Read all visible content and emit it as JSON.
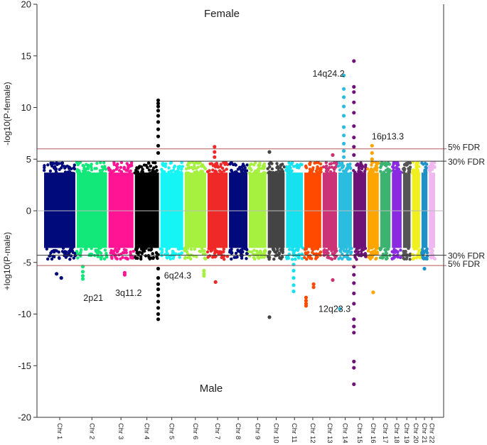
{
  "chart_data": {
    "type": "scatter",
    "subtype": "miami-plot",
    "top_label": "Female",
    "bottom_label": "Male",
    "ylabel_top": "-log10(P-female)",
    "ylabel_bottom": "+log10(P-male)",
    "ylim": [
      -20,
      20
    ],
    "yticks": [
      -20,
      -15,
      -10,
      -5,
      0,
      5,
      10,
      15,
      20
    ],
    "grid": false,
    "chromosomes": [
      {
        "label": "Chr 1",
        "color": "#000a7a",
        "size": 1.0
      },
      {
        "label": "Chr 2",
        "color": "#12e87a",
        "size": 0.97
      },
      {
        "label": "Chr 3",
        "color": "#ff1493",
        "size": 0.8
      },
      {
        "label": "Chr 4",
        "color": "#000000",
        "size": 0.77
      },
      {
        "label": "Chr 5",
        "color": "#15f5f5",
        "size": 0.73
      },
      {
        "label": "Chr 6",
        "color": "#a6f040",
        "size": 0.69
      },
      {
        "label": "Chr 7",
        "color": "#ef2828",
        "size": 0.64
      },
      {
        "label": "Chr 8",
        "color": "#000a7a",
        "size": 0.59
      },
      {
        "label": "Chr 9",
        "color": "#a6f040",
        "size": 0.56
      },
      {
        "label": "Chr 10",
        "color": "#444444",
        "size": 0.54
      },
      {
        "label": "Chr 11",
        "color": "#15e2ee",
        "size": 0.54
      },
      {
        "label": "Chr 12",
        "color": "#ff4a00",
        "size": 0.54
      },
      {
        "label": "Chr 13",
        "color": "#cc3377",
        "size": 0.46
      },
      {
        "label": "Chr 14",
        "color": "#2bbde0",
        "size": 0.43
      },
      {
        "label": "Chr 15",
        "color": "#6e1278",
        "size": 0.41
      },
      {
        "label": "Chr 16",
        "color": "#ffa500",
        "size": 0.36
      },
      {
        "label": "Chr 17",
        "color": "#3cb371",
        "size": 0.33
      },
      {
        "label": "Chr 18",
        "color": "#8a2be2",
        "size": 0.31
      },
      {
        "label": "Chr 19",
        "color": "#555555",
        "size": 0.24
      },
      {
        "label": "Chr 20",
        "color": "#f0f020",
        "size": 0.26
      },
      {
        "label": "Chr 21",
        "color": "#1e90c8",
        "size": 0.19
      },
      {
        "label": "Chr 22",
        "color": "#f0b8f0",
        "size": 0.2
      }
    ],
    "thresholds": [
      {
        "label": "5%  FDR",
        "y": 6.0,
        "color": "#b85a5a"
      },
      {
        "label": "30% FDR",
        "y": 4.8,
        "color": "#333333"
      },
      {
        "label": "30% FDR",
        "y": -4.3,
        "color": "#333333"
      },
      {
        "label": "5%  FDR",
        "y": -5.3,
        "color": "#b85a5a"
      }
    ],
    "annotations": [
      {
        "label": "14q24.2",
        "chr": "Chr 14",
        "y": 13.0
      },
      {
        "label": "16p13.3",
        "chr": "Chr 16",
        "y": 6.5
      },
      {
        "label": "2p21",
        "chr": "Chr 2",
        "y": -7.5
      },
      {
        "label": "3q11.2",
        "chr": "Chr 3",
        "y": -7.0
      },
      {
        "label": "6q24.3",
        "chr": "Chr 6",
        "y": -6.0
      },
      {
        "label": "12q23.3",
        "chr": "Chr 12",
        "y": -8.0
      }
    ],
    "peaks": [
      {
        "chr": "Chr 4",
        "pos": 0.97,
        "y": [
          10.7,
          10.4,
          10.1,
          9.7,
          9.2,
          8.6,
          7.9,
          7.2,
          6.3,
          5.6
        ]
      },
      {
        "chr": "Chr 4",
        "pos": 0.97,
        "y": [
          -5.6,
          -6.5,
          -7.1,
          -7.6,
          -8.2,
          -8.8,
          -9.4,
          -10.0,
          -10.5
        ]
      },
      {
        "chr": "Chr 14",
        "pos": 0.4,
        "y": [
          13.1,
          11.8,
          11.0,
          10.1,
          9.2,
          8.1,
          7.3,
          6.5,
          5.8,
          5.2
        ]
      },
      {
        "chr": "Chr 15",
        "pos": 0.05,
        "y": [
          14.5,
          12.0,
          11.5,
          10.5,
          9.5,
          8.2,
          7.1,
          6.2,
          5.4
        ]
      },
      {
        "chr": "Chr 15",
        "pos": 0.05,
        "y": [
          -5.4,
          -6.2,
          -7.0,
          -8.0,
          -9.0,
          -10.5,
          -11.2,
          -11.8,
          -14.6,
          -15.2,
          -16.8
        ]
      },
      {
        "chr": "Chr 11",
        "pos": 0.45,
        "y": [
          -5.2,
          -5.8,
          -6.5,
          -7.2,
          -7.8
        ]
      },
      {
        "chr": "Chr 12",
        "pos": 0.1,
        "y": [
          -8.4,
          -8.7,
          -9.0,
          -9.2
        ]
      },
      {
        "chr": "Chr 12",
        "pos": 0.55,
        "y": [
          -7.1,
          -7.4
        ]
      },
      {
        "chr": "Chr 2",
        "pos": 0.2,
        "y": [
          -5.4,
          -5.9,
          -6.3,
          -6.6
        ]
      },
      {
        "chr": "Chr 3",
        "pos": 0.65,
        "y": [
          -6.0,
          -6.2
        ]
      },
      {
        "chr": "Chr 6",
        "pos": 0.9,
        "y": [
          -5.8,
          -6.1,
          -6.3
        ]
      },
      {
        "chr": "Chr 7",
        "pos": 0.35,
        "y": [
          6.2,
          5.7,
          5.2
        ]
      },
      {
        "chr": "Chr 7",
        "pos": 0.4,
        "y": [
          -6.9
        ]
      },
      {
        "chr": "Chr 16",
        "pos": 0.4,
        "y": [
          6.3,
          5.6,
          5.0
        ]
      },
      {
        "chr": "Chr 16",
        "pos": 0.5,
        "y": [
          -7.9
        ]
      },
      {
        "chr": "Chr 1",
        "pos": 0.4,
        "y": [
          -6.1
        ]
      },
      {
        "chr": "Chr 1",
        "pos": 0.55,
        "y": [
          -6.5
        ]
      },
      {
        "chr": "Chr 10",
        "pos": 0.1,
        "y": [
          -10.3
        ]
      },
      {
        "chr": "Chr 10",
        "pos": 0.1,
        "y": [
          5.7
        ]
      },
      {
        "chr": "Chr 14",
        "pos": 0.1,
        "y": [
          -9.5
        ]
      },
      {
        "chr": "Chr 13",
        "pos": 0.7,
        "y": [
          5.4,
          -6.7
        ]
      },
      {
        "chr": "Chr 21",
        "pos": 0.5,
        "y": [
          -5.6
        ]
      }
    ]
  }
}
